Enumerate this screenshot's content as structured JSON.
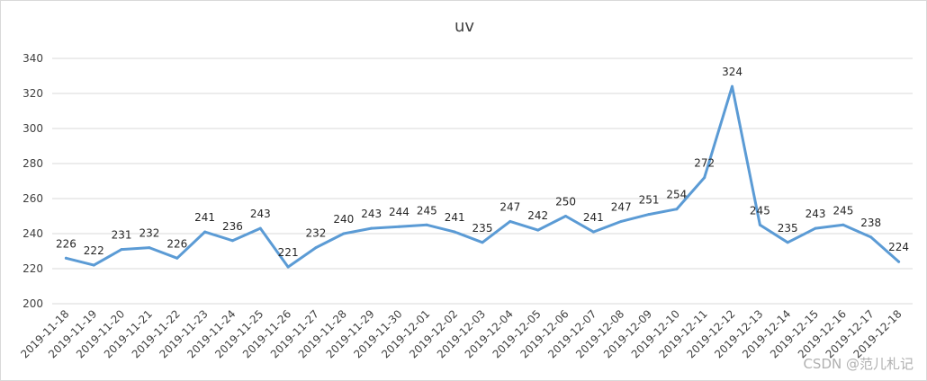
{
  "chart_data": {
    "type": "line",
    "title": "uv",
    "xlabel": "",
    "ylabel": "",
    "categories": [
      "2019-11-18",
      "2019-11-19",
      "2019-11-20",
      "2019-11-21",
      "2019-11-22",
      "2019-11-23",
      "2019-11-24",
      "2019-11-25",
      "2019-11-26",
      "2019-11-27",
      "2019-11-28",
      "2019-11-29",
      "2019-11-30",
      "2019-12-01",
      "2019-12-02",
      "2019-12-03",
      "2019-12-04",
      "2019-12-05",
      "2019-12-06",
      "2019-12-07",
      "2019-12-08",
      "2019-12-09",
      "2019-12-10",
      "2019-12-11",
      "2019-12-12",
      "2019-12-13",
      "2019-12-14",
      "2019-12-15",
      "2019-12-16",
      "2019-12-17",
      "2019-12-18"
    ],
    "series": [
      {
        "values": [
          226,
          222,
          231,
          232,
          226,
          241,
          236,
          243,
          221,
          232,
          240,
          243,
          244,
          245,
          241,
          235,
          247,
          242,
          250,
          241,
          247,
          251,
          254,
          272,
          324,
          245,
          235,
          243,
          245,
          238,
          224
        ],
        "color": "#5b9bd5"
      }
    ],
    "ylim": [
      200,
      340
    ],
    "yticks": [
      200,
      220,
      240,
      260,
      280,
      300,
      320,
      340
    ],
    "grid": true,
    "legend": "none",
    "data_labels": true
  },
  "watermark": "CSDN @范儿札记"
}
